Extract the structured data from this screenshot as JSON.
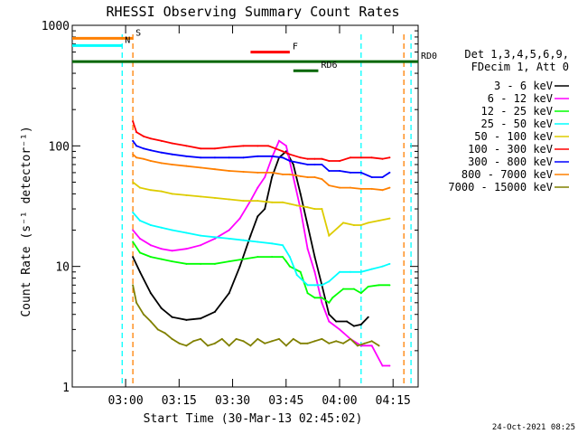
{
  "chart_data": {
    "type": "line",
    "title": "RHESSI Observing Summary Count Rates",
    "xlabel": "Start Time (30-Mar-13 02:45:02)",
    "ylabel": "Count Rate (s⁻¹ detector⁻¹)",
    "ylog": true,
    "ylim": [
      1,
      1000
    ],
    "xlim_minutes_after_start": [
      0,
      97
    ],
    "x_ticks": [
      "03:00",
      "03:15",
      "03:30",
      "03:45",
      "04:00",
      "04:15"
    ],
    "y_ticks": [
      "1",
      "10",
      "100",
      "1000"
    ],
    "footer": "24-Oct-2021 08:25",
    "legend_header": [
      "Det 1,3,4,5,6,9,",
      "FDecim 1, Att 0"
    ],
    "legend_position": "right",
    "series": [
      {
        "name": "3 - 6 keV",
        "color": "#000000",
        "points": [
          [
            17,
            12
          ],
          [
            19,
            9
          ],
          [
            22,
            6
          ],
          [
            25,
            4.5
          ],
          [
            28,
            3.8
          ],
          [
            32,
            3.6
          ],
          [
            36,
            3.7
          ],
          [
            40,
            4.2
          ],
          [
            44,
            6
          ],
          [
            47,
            10
          ],
          [
            50,
            18
          ],
          [
            52,
            26
          ],
          [
            54,
            30
          ],
          [
            56,
            55
          ],
          [
            58,
            80
          ],
          [
            60,
            90
          ],
          [
            62,
            70
          ],
          [
            64,
            40
          ],
          [
            66,
            22
          ],
          [
            68,
            12
          ],
          [
            70,
            7
          ],
          [
            72,
            4
          ],
          [
            74,
            3.5
          ],
          [
            77,
            3.5
          ],
          [
            79,
            3.2
          ],
          [
            81,
            3.3
          ],
          [
            83,
            3.8
          ]
        ]
      },
      {
        "name": "6 - 12 keV",
        "color": "#ff00ff",
        "points": [
          [
            17,
            20
          ],
          [
            19,
            17
          ],
          [
            22,
            15
          ],
          [
            25,
            14
          ],
          [
            28,
            13.5
          ],
          [
            32,
            14
          ],
          [
            36,
            15
          ],
          [
            40,
            17
          ],
          [
            44,
            20
          ],
          [
            47,
            25
          ],
          [
            50,
            35
          ],
          [
            52,
            45
          ],
          [
            54,
            55
          ],
          [
            56,
            80
          ],
          [
            58,
            110
          ],
          [
            60,
            100
          ],
          [
            62,
            55
          ],
          [
            64,
            30
          ],
          [
            66,
            14
          ],
          [
            68,
            9
          ],
          [
            70,
            5
          ],
          [
            72,
            3.5
          ],
          [
            75,
            3
          ],
          [
            78,
            2.5
          ],
          [
            81,
            2.2
          ],
          [
            84,
            2.2
          ],
          [
            87,
            1.5
          ],
          [
            89,
            1.5
          ]
        ]
      },
      {
        "name": "12 - 25 keV",
        "color": "#00ff00",
        "points": [
          [
            17,
            16
          ],
          [
            19,
            13
          ],
          [
            22,
            12
          ],
          [
            25,
            11.5
          ],
          [
            28,
            11
          ],
          [
            32,
            10.5
          ],
          [
            36,
            10.5
          ],
          [
            40,
            10.5
          ],
          [
            44,
            11
          ],
          [
            48,
            11.5
          ],
          [
            52,
            12
          ],
          [
            56,
            12
          ],
          [
            59,
            12
          ],
          [
            60,
            11
          ],
          [
            61,
            10
          ],
          [
            64,
            9
          ],
          [
            66,
            6
          ],
          [
            68,
            5.5
          ],
          [
            70,
            5.5
          ],
          [
            72,
            5
          ],
          [
            73,
            5.5
          ],
          [
            76,
            6.5
          ],
          [
            79,
            6.5
          ],
          [
            81,
            6
          ],
          [
            83,
            6.8
          ],
          [
            86,
            7
          ],
          [
            89,
            7
          ]
        ]
      },
      {
        "name": "25 - 50 keV",
        "color": "#00ffff",
        "points": [
          [
            17,
            28
          ],
          [
            19,
            24
          ],
          [
            22,
            22
          ],
          [
            25,
            21
          ],
          [
            28,
            20
          ],
          [
            32,
            19
          ],
          [
            36,
            18
          ],
          [
            40,
            17.5
          ],
          [
            44,
            17
          ],
          [
            48,
            16.5
          ],
          [
            52,
            16
          ],
          [
            56,
            15.5
          ],
          [
            59,
            15
          ],
          [
            61,
            12
          ],
          [
            63,
            8.5
          ],
          [
            66,
            7
          ],
          [
            68,
            7
          ],
          [
            70,
            7
          ],
          [
            72,
            7.5
          ],
          [
            75,
            9
          ],
          [
            78,
            9
          ],
          [
            81,
            9
          ],
          [
            84,
            9.5
          ],
          [
            87,
            10
          ],
          [
            89,
            10.5
          ]
        ]
      },
      {
        "name": "50 - 100 keV",
        "color": "#ddcc00",
        "points": [
          [
            17,
            50
          ],
          [
            19,
            45
          ],
          [
            22,
            43
          ],
          [
            25,
            42
          ],
          [
            28,
            40
          ],
          [
            32,
            39
          ],
          [
            36,
            38
          ],
          [
            40,
            37
          ],
          [
            44,
            36
          ],
          [
            48,
            35
          ],
          [
            52,
            35
          ],
          [
            56,
            34
          ],
          [
            59,
            34
          ],
          [
            61,
            33
          ],
          [
            63,
            32
          ],
          [
            66,
            31
          ],
          [
            68,
            30
          ],
          [
            70,
            30
          ],
          [
            72,
            18
          ],
          [
            76,
            23
          ],
          [
            79,
            22
          ],
          [
            81,
            22
          ],
          [
            83,
            23
          ],
          [
            86,
            24
          ],
          [
            89,
            25
          ]
        ]
      },
      {
        "name": "100 - 300 keV",
        "color": "#ff0000",
        "points": [
          [
            17,
            160
          ],
          [
            18,
            130
          ],
          [
            20,
            120
          ],
          [
            22,
            115
          ],
          [
            25,
            110
          ],
          [
            28,
            105
          ],
          [
            32,
            100
          ],
          [
            36,
            95
          ],
          [
            40,
            95
          ],
          [
            44,
            98
          ],
          [
            48,
            100
          ],
          [
            52,
            100
          ],
          [
            55,
            100
          ],
          [
            57,
            95
          ],
          [
            59,
            90
          ],
          [
            61,
            85
          ],
          [
            64,
            80
          ],
          [
            66,
            78
          ],
          [
            68,
            78
          ],
          [
            70,
            78
          ],
          [
            72,
            75
          ],
          [
            75,
            75
          ],
          [
            78,
            80
          ],
          [
            81,
            80
          ],
          [
            84,
            80
          ],
          [
            87,
            78
          ],
          [
            89,
            80
          ]
        ]
      },
      {
        "name": "300 - 800 keV",
        "color": "#0000ff",
        "points": [
          [
            17,
            110
          ],
          [
            18,
            100
          ],
          [
            20,
            95
          ],
          [
            22,
            92
          ],
          [
            25,
            88
          ],
          [
            28,
            85
          ],
          [
            32,
            82
          ],
          [
            36,
            80
          ],
          [
            40,
            80
          ],
          [
            44,
            80
          ],
          [
            48,
            80
          ],
          [
            52,
            82
          ],
          [
            56,
            82
          ],
          [
            59,
            80
          ],
          [
            61,
            75
          ],
          [
            64,
            72
          ],
          [
            66,
            70
          ],
          [
            68,
            70
          ],
          [
            70,
            70
          ],
          [
            72,
            62
          ],
          [
            75,
            62
          ],
          [
            78,
            60
          ],
          [
            81,
            60
          ],
          [
            84,
            55
          ],
          [
            87,
            55
          ],
          [
            89,
            60
          ]
        ]
      },
      {
        "name": "800 - 7000 keV",
        "color": "#ff8000",
        "points": [
          [
            17,
            85
          ],
          [
            18,
            80
          ],
          [
            20,
            78
          ],
          [
            22,
            75
          ],
          [
            25,
            72
          ],
          [
            28,
            70
          ],
          [
            32,
            68
          ],
          [
            36,
            66
          ],
          [
            40,
            64
          ],
          [
            44,
            62
          ],
          [
            48,
            61
          ],
          [
            52,
            60
          ],
          [
            56,
            60
          ],
          [
            59,
            58
          ],
          [
            61,
            58
          ],
          [
            64,
            56
          ],
          [
            66,
            55
          ],
          [
            68,
            55
          ],
          [
            70,
            53
          ],
          [
            72,
            47
          ],
          [
            75,
            45
          ],
          [
            78,
            45
          ],
          [
            81,
            44
          ],
          [
            84,
            44
          ],
          [
            87,
            43
          ],
          [
            89,
            45
          ]
        ]
      },
      {
        "name": "7000 - 15000 keV",
        "color": "#808000",
        "points": [
          [
            17,
            7
          ],
          [
            18,
            5
          ],
          [
            20,
            4
          ],
          [
            22,
            3.5
          ],
          [
            24,
            3
          ],
          [
            26,
            2.8
          ],
          [
            28,
            2.5
          ],
          [
            30,
            2.3
          ],
          [
            32,
            2.2
          ],
          [
            34,
            2.4
          ],
          [
            36,
            2.5
          ],
          [
            38,
            2.2
          ],
          [
            40,
            2.3
          ],
          [
            42,
            2.5
          ],
          [
            44,
            2.2
          ],
          [
            46,
            2.5
          ],
          [
            48,
            2.4
          ],
          [
            50,
            2.2
          ],
          [
            52,
            2.5
          ],
          [
            54,
            2.3
          ],
          [
            56,
            2.4
          ],
          [
            58,
            2.5
          ],
          [
            60,
            2.2
          ],
          [
            62,
            2.5
          ],
          [
            64,
            2.3
          ],
          [
            66,
            2.3
          ],
          [
            68,
            2.4
          ],
          [
            70,
            2.5
          ],
          [
            72,
            2.3
          ],
          [
            74,
            2.4
          ],
          [
            76,
            2.3
          ],
          [
            78,
            2.5
          ],
          [
            80,
            2.2
          ],
          [
            82,
            2.3
          ],
          [
            84,
            2.4
          ],
          [
            86,
            2.2
          ]
        ]
      }
    ],
    "vertical_markers": [
      {
        "label": "N",
        "color": "#00ffff",
        "x": 14
      },
      {
        "label": "S",
        "color": "#ff8000",
        "x": 17
      },
      {
        "color": "#00ffff",
        "x": 81
      },
      {
        "color": "#00ffff",
        "x": 95
      },
      {
        "color": "#ff8000",
        "x": 93
      }
    ],
    "state_bars": [
      {
        "label": "S",
        "color": "#ff8000",
        "x_start": 0,
        "x_end": 17,
        "y": 780
      },
      {
        "label": "N",
        "color": "#00ffff",
        "x_start": 0,
        "x_end": 14,
        "y": 680
      },
      {
        "label": "F",
        "color": "#ff0000",
        "x_start": 50,
        "x_end": 61,
        "y": 600
      },
      {
        "label": "RD0",
        "color": "#006600",
        "x_start": 0,
        "x_end": 97,
        "y": 500
      },
      {
        "label": "RD6",
        "color": "#006600",
        "x_start": 62,
        "x_end": 69,
        "y": 420
      }
    ]
  }
}
